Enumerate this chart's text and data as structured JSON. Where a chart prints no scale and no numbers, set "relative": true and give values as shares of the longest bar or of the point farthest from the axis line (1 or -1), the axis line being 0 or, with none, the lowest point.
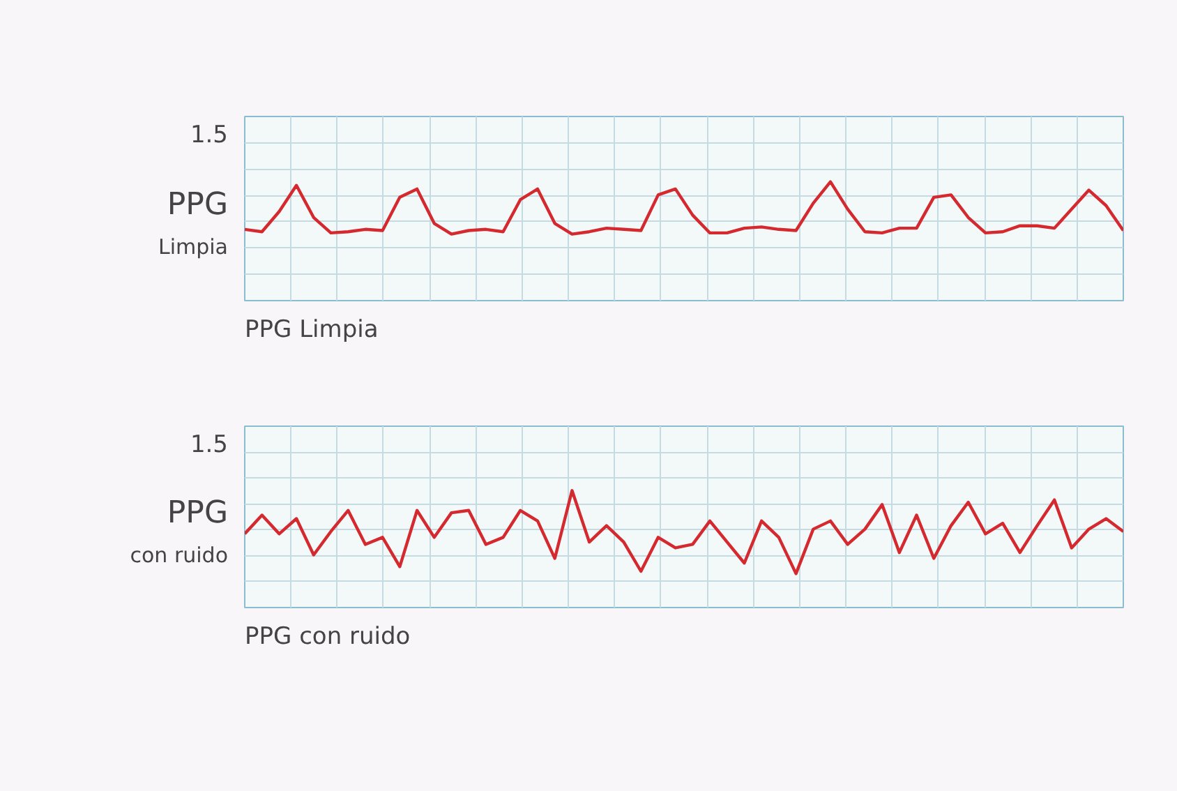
{
  "chart_data": [
    {
      "type": "line",
      "relative": true,
      "ylabel": "PPG\nLimpia",
      "xlabel": "PPG Limpia",
      "annotations": [
        "1.5"
      ],
      "grid": true,
      "categories": [
        null,
        null,
        null,
        null,
        null,
        null,
        null,
        null,
        null,
        null,
        null,
        null,
        null,
        null,
        null,
        null,
        null,
        null,
        null,
        null,
        null,
        null,
        null,
        null,
        null,
        null,
        null,
        null,
        null,
        null,
        null,
        null,
        null,
        null,
        null,
        null,
        null,
        null,
        null,
        null,
        null,
        null,
        null,
        null,
        null,
        null,
        null,
        null,
        null,
        null,
        null,
        null
      ],
      "series": [
        {
          "color": "#d42a2f",
          "values": [
            0.6,
            0.58,
            0.75,
            0.97,
            0.7,
            0.57,
            0.58,
            0.6,
            0.59,
            0.87,
            0.94,
            0.65,
            0.56,
            0.59,
            0.6,
            0.58,
            0.85,
            0.94,
            0.65,
            0.56,
            0.58,
            0.61,
            0.6,
            0.59,
            0.89,
            0.94,
            0.72,
            0.57,
            0.57,
            0.61,
            0.62,
            0.6,
            0.59,
            0.82,
            1.0,
            0.77,
            0.58,
            0.57,
            0.61,
            0.61,
            0.87,
            0.89,
            0.7,
            0.57,
            0.58,
            0.63,
            0.63,
            0.61,
            0.77,
            0.93,
            0.8,
            0.59
          ]
        }
      ]
    },
    {
      "type": "line",
      "relative": true,
      "ylabel": "PPG\ncon ruido",
      "xlabel": "PPG con ruido",
      "annotations": [
        "1.5"
      ],
      "grid": true,
      "categories": [
        null,
        null,
        null,
        null,
        null,
        null,
        null,
        null,
        null,
        null,
        null,
        null,
        null,
        null,
        null,
        null,
        null,
        null,
        null,
        null,
        null,
        null,
        null,
        null,
        null,
        null,
        null,
        null,
        null,
        null,
        null,
        null,
        null,
        null,
        null,
        null,
        null,
        null,
        null,
        null,
        null,
        null,
        null,
        null,
        null,
        null,
        null,
        null,
        null,
        null,
        null,
        null
      ],
      "series": [
        {
          "color": "#d42a2f",
          "values": [
            0.63,
            0.79,
            0.63,
            0.76,
            0.45,
            0.65,
            0.83,
            0.54,
            0.6,
            0.35,
            0.83,
            0.6,
            0.81,
            0.83,
            0.54,
            0.6,
            0.83,
            0.74,
            0.42,
            1.0,
            0.56,
            0.7,
            0.56,
            0.31,
            0.6,
            0.51,
            0.54,
            0.74,
            0.56,
            0.38,
            0.74,
            0.6,
            0.29,
            0.67,
            0.74,
            0.54,
            0.67,
            0.88,
            0.47,
            0.79,
            0.42,
            0.7,
            0.9,
            0.63,
            0.72,
            0.47,
            0.7,
            0.92,
            0.51,
            0.67,
            0.76,
            0.65
          ]
        }
      ]
    }
  ]
}
